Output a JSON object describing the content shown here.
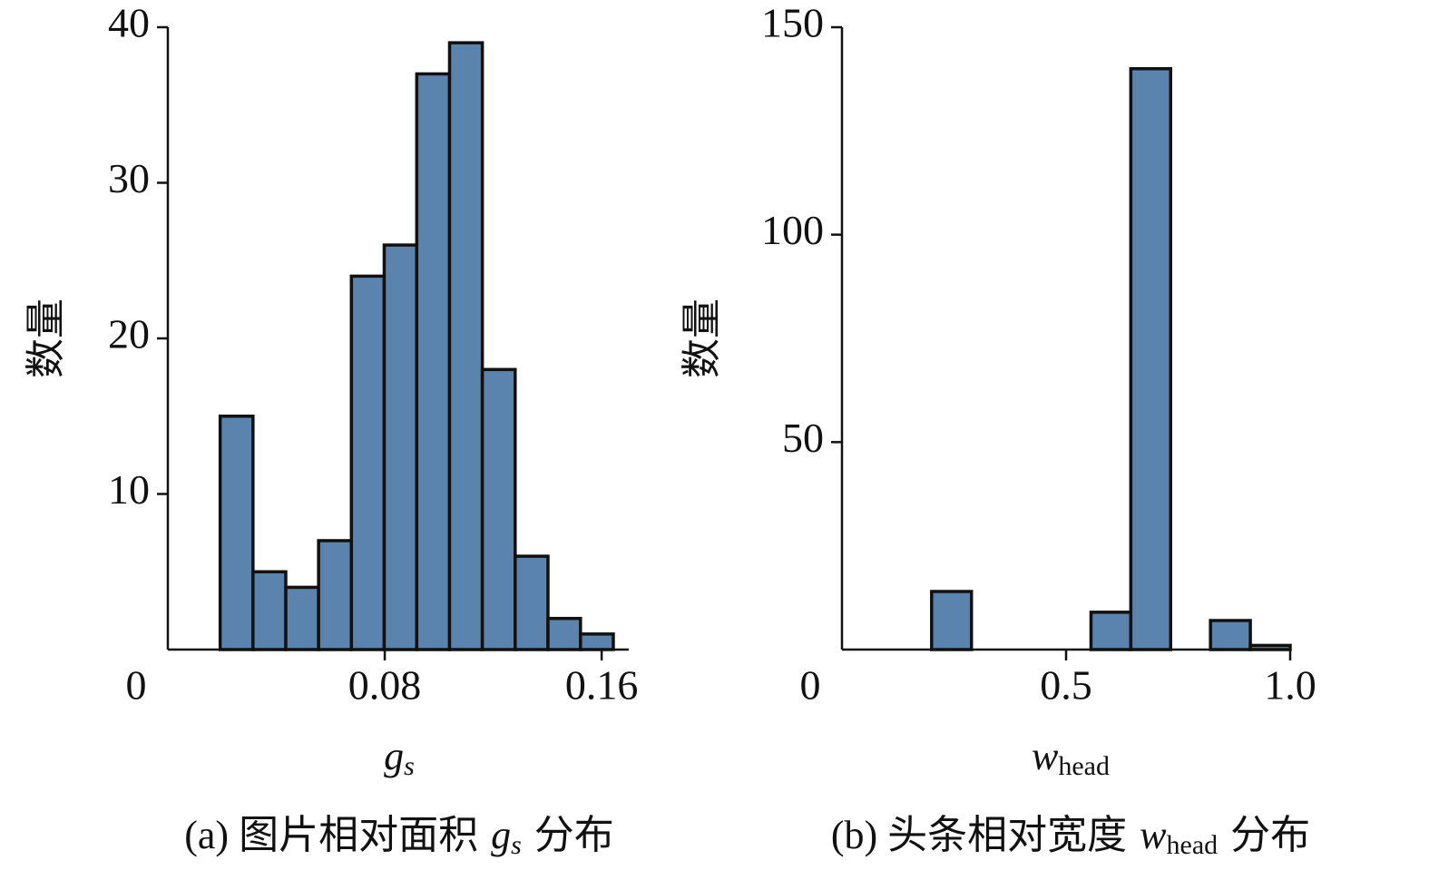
{
  "chart_data": [
    {
      "type": "histogram",
      "y_label": "数量",
      "x_label": "g",
      "x_label_sub": "s",
      "caption_prefix": "(a) 图片相对面积",
      "caption_symbol": "g",
      "caption_sub": "s",
      "caption_suffix": "分布",
      "bins": [
        0.0193,
        0.0314,
        0.0435,
        0.0556,
        0.0677,
        0.0798,
        0.0918,
        0.1039,
        0.116,
        0.1281,
        0.1402,
        0.1522,
        0.1643
      ],
      "values": [
        15,
        5,
        4,
        7,
        24,
        26,
        37,
        39,
        18,
        6,
        2,
        1
      ],
      "color": "#5a83ad",
      "xlim": [
        0,
        0.17
      ],
      "xticks": [
        0,
        0.08,
        0.16
      ],
      "ylim": [
        0,
        40
      ],
      "yticks": [
        10,
        20,
        30,
        40
      ]
    },
    {
      "type": "histogram",
      "y_label": "数量",
      "x_label": "w",
      "x_label_sub": "head",
      "caption_prefix": "(b) 头条相对宽度",
      "caption_symbol": "w",
      "caption_sub": "head",
      "caption_suffix": "分布",
      "bins": [
        0.2,
        0.2889,
        0.3778,
        0.4667,
        0.5556,
        0.6444,
        0.7333,
        0.8222,
        0.9111,
        1.0
      ],
      "values": [
        14,
        0,
        0,
        0,
        9,
        140,
        0,
        7,
        1
      ],
      "color": "#5a83ad",
      "xlim": [
        0,
        1.0
      ],
      "xticks": [
        0,
        0.5,
        {
          "value": 1,
          "label": "1.0"
        }
      ],
      "ylim": [
        0,
        150
      ],
      "yticks": [
        50,
        100,
        {
          "value": 150,
          "label": "150"
        }
      ]
    }
  ]
}
